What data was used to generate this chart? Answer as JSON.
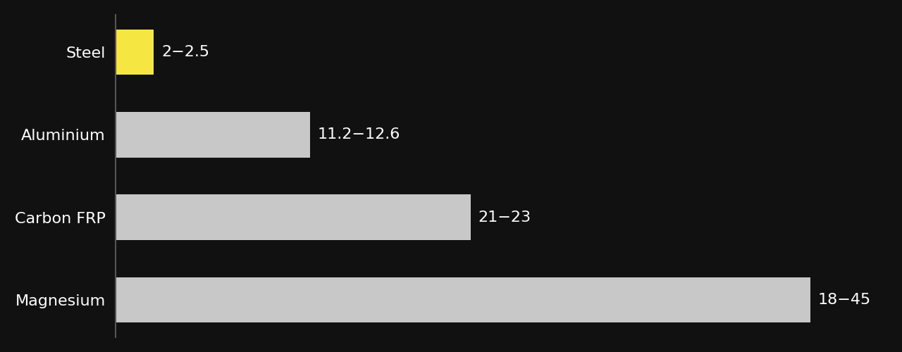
{
  "categories": [
    "Steel",
    "Aluminium",
    "Carbon FRP",
    "Magnesium"
  ],
  "values": [
    2.5,
    12.6,
    23,
    45
  ],
  "labels": [
    "2−2.5",
    "11.2−12.6",
    "21−23",
    "18−45"
  ],
  "bar_colors": [
    "#f5e642",
    "#c8c8c8",
    "#c8c8c8",
    "#c8c8c8"
  ],
  "background_color": "#111111",
  "text_color": "#ffffff",
  "label_color": "#ffffff",
  "bar_height": 0.55,
  "xlim": [
    0,
    50
  ],
  "figsize": [
    12.8,
    5.0
  ],
  "dpi": 100,
  "font_size": 16,
  "label_font_size": 16,
  "spine_color": "#555555"
}
